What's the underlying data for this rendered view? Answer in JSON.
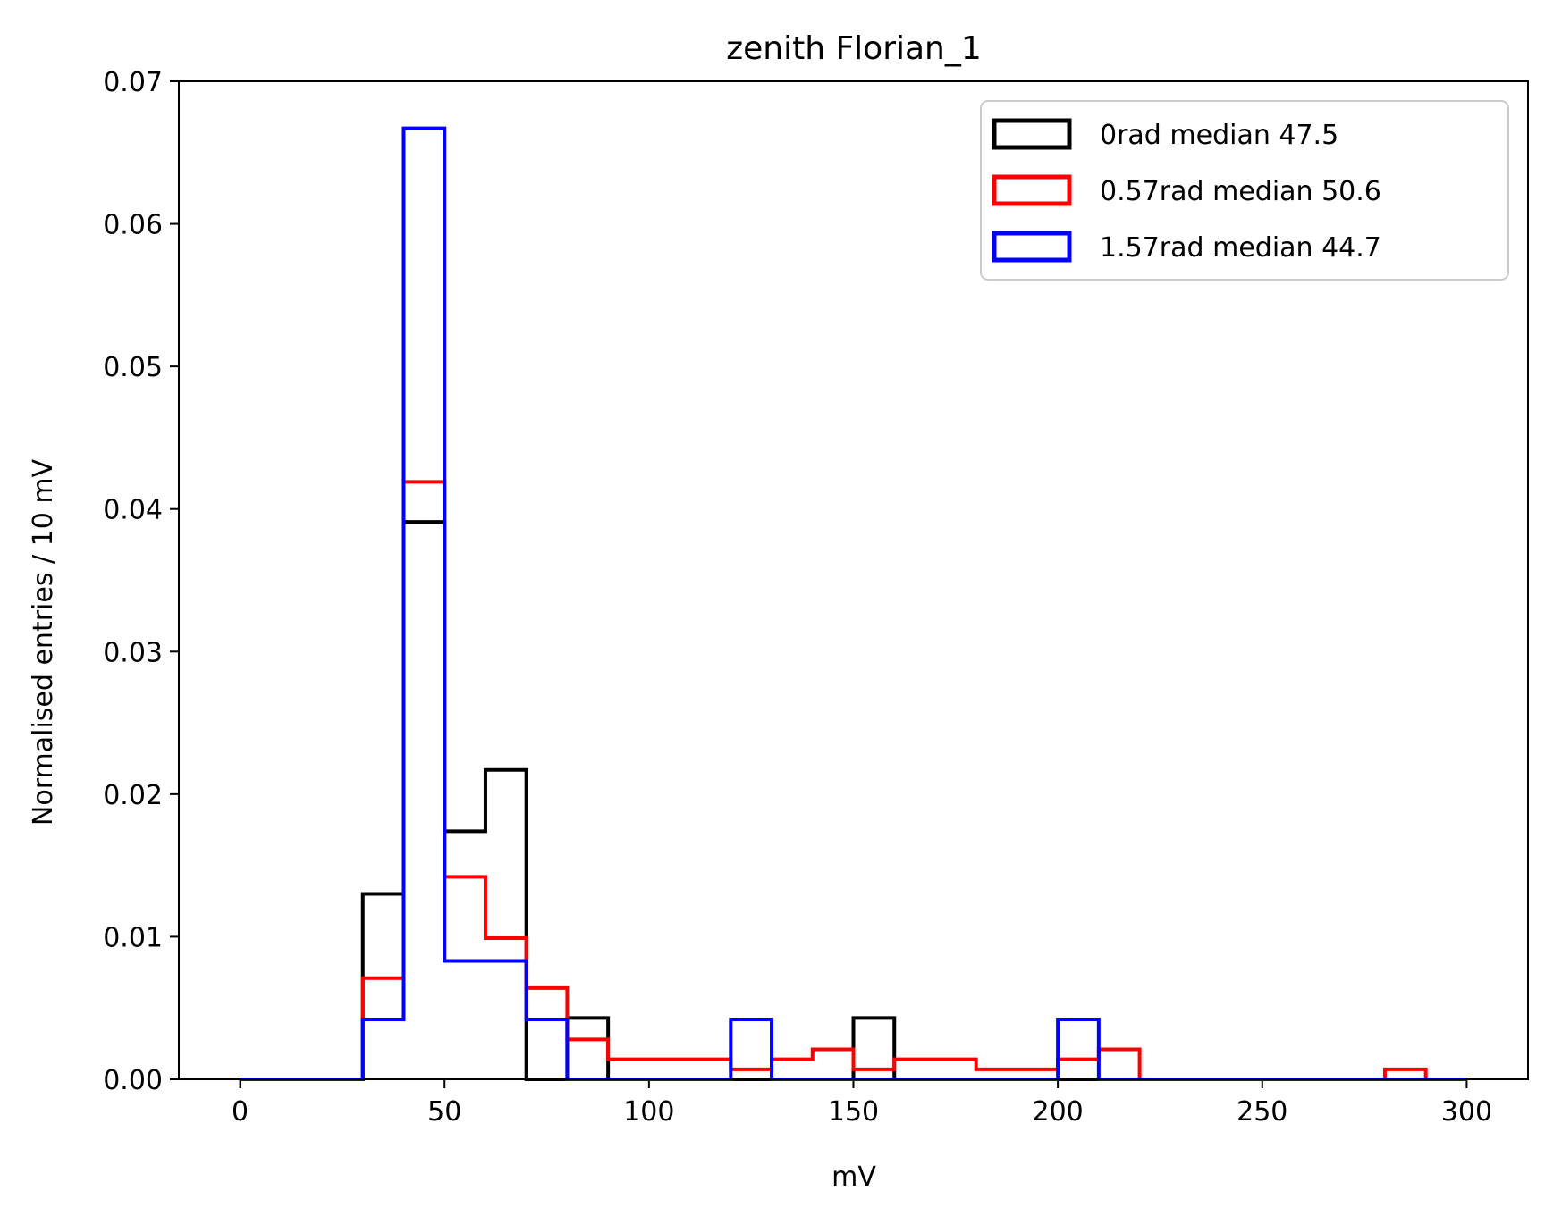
{
  "chart_data": {
    "type": "histogram-step",
    "title": "zenith Florian_1",
    "xlabel": "mV",
    "ylabel": "Normalised entries / 10 mV",
    "xlim": [
      -15,
      315
    ],
    "ylim": [
      0,
      0.07
    ],
    "x_ticks": [
      0,
      50,
      100,
      150,
      200,
      250,
      300
    ],
    "x_tick_labels": [
      "0",
      "50",
      "100",
      "150",
      "200",
      "250",
      "300"
    ],
    "y_ticks": [
      0,
      0.01,
      0.02,
      0.03,
      0.04,
      0.05,
      0.06,
      0.07
    ],
    "y_tick_labels": [
      "0.00",
      "0.01",
      "0.02",
      "0.03",
      "0.04",
      "0.05",
      "0.06",
      "0.07"
    ],
    "grid": false,
    "legend_position": "top-right",
    "bin_edges": [
      0,
      10,
      20,
      30,
      40,
      50,
      60,
      70,
      80,
      90,
      100,
      110,
      120,
      130,
      140,
      150,
      160,
      170,
      180,
      190,
      200,
      210,
      220,
      230,
      240,
      250,
      260,
      270,
      280,
      290,
      300
    ],
    "series": [
      {
        "name": "0rad median 47.5",
        "color": "#000000",
        "values": [
          0,
          0,
          0,
          0.013,
          0.0391,
          0.0174,
          0.0217,
          0,
          0.0043,
          0,
          0,
          0,
          0,
          0,
          0,
          0.0043,
          0,
          0,
          0,
          0,
          0,
          0,
          0,
          0,
          0,
          0,
          0,
          0,
          0,
          0
        ]
      },
      {
        "name": "0.57rad median 50.6",
        "color": "#ff0000",
        "values": [
          0,
          0,
          0,
          0.0071,
          0.0419,
          0.0142,
          0.0099,
          0.0064,
          0.0028,
          0.0014,
          0.0014,
          0.0014,
          0.0007,
          0.0014,
          0.0021,
          0.0007,
          0.0014,
          0.0014,
          0.0007,
          0.0007,
          0.0014,
          0.0021,
          0,
          0,
          0,
          0,
          0,
          0,
          0.0007,
          0
        ]
      },
      {
        "name": "1.57rad median 44.7",
        "color": "#0000ff",
        "values": [
          0,
          0,
          0,
          0.0042,
          0.0667,
          0.0083,
          0.0083,
          0.0042,
          0,
          0,
          0,
          0,
          0.0042,
          0,
          0,
          0,
          0,
          0,
          0,
          0,
          0.0042,
          0,
          0,
          0,
          0,
          0,
          0,
          0,
          0,
          0
        ]
      }
    ]
  }
}
